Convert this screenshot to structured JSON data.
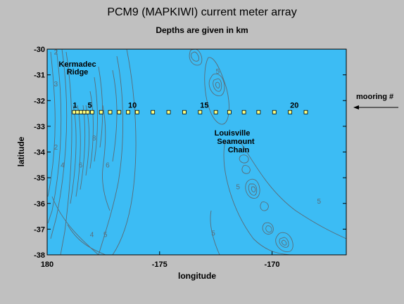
{
  "title": "PCM9 (MAPKIWI) current meter array",
  "subtitle": "Depths are given in km",
  "axes": {
    "xlabel": "longitude",
    "ylabel": "latitude",
    "x_ticks": [
      {
        "value": 180,
        "label": "180"
      },
      {
        "value": 185,
        "label": "-175"
      },
      {
        "value": 190,
        "label": "-170"
      }
    ],
    "y_ticks": [
      -30,
      -31,
      -32,
      -33,
      -34,
      -35,
      -36,
      -37,
      -38
    ],
    "xlim": [
      180,
      193.3
    ],
    "ylim": [
      -38,
      -30
    ]
  },
  "features": {
    "kermadec": [
      "Kermadec",
      "Ridge"
    ],
    "louisville": [
      "Louisville",
      "Seamount",
      "Chain"
    ]
  },
  "mooring_label": "mooring #",
  "moorings": {
    "lat": -32.45,
    "lon": [
      181.2,
      181.35,
      181.5,
      181.65,
      181.8,
      182.0,
      182.4,
      182.8,
      183.2,
      183.6,
      184.0,
      184.7,
      185.4,
      186.1,
      186.8,
      187.5,
      188.1,
      188.75,
      189.4,
      190.1,
      190.8,
      191.5
    ],
    "labels": [
      {
        "index": 0,
        "text": "1"
      },
      {
        "index": 4,
        "text": "5"
      },
      {
        "index": 9,
        "text": "10"
      },
      {
        "index": 14,
        "text": "15"
      },
      {
        "index": 20,
        "text": "20"
      }
    ]
  },
  "contour_labels": [
    {
      "text": "2",
      "lon": 180.3,
      "lat": -30.2
    },
    {
      "text": "3",
      "lon": 180.3,
      "lat": -31.45
    },
    {
      "text": "2",
      "lon": 180.3,
      "lat": -33.9
    },
    {
      "text": "4",
      "lon": 180.6,
      "lat": -34.6
    },
    {
      "text": "6",
      "lon": 181.4,
      "lat": -34.6
    },
    {
      "text": "8",
      "lon": 182.0,
      "lat": -33.55
    },
    {
      "text": "6",
      "lon": 182.6,
      "lat": -34.6
    },
    {
      "text": "5",
      "lon": 187.5,
      "lat": -30.95
    },
    {
      "text": "5",
      "lon": 188.4,
      "lat": -35.45
    },
    {
      "text": "5",
      "lon": 192.0,
      "lat": -36.0
    },
    {
      "text": "5",
      "lon": 187.3,
      "lat": -37.25
    },
    {
      "text": "4",
      "lon": 181.9,
      "lat": -37.3
    },
    {
      "text": "5",
      "lon": 182.5,
      "lat": -37.3
    }
  ],
  "colors": {
    "ocean": "#3cbcf4",
    "contour": "#5a6c78",
    "mooring_fill": "#ffff80",
    "background": "#c0c0c0"
  }
}
